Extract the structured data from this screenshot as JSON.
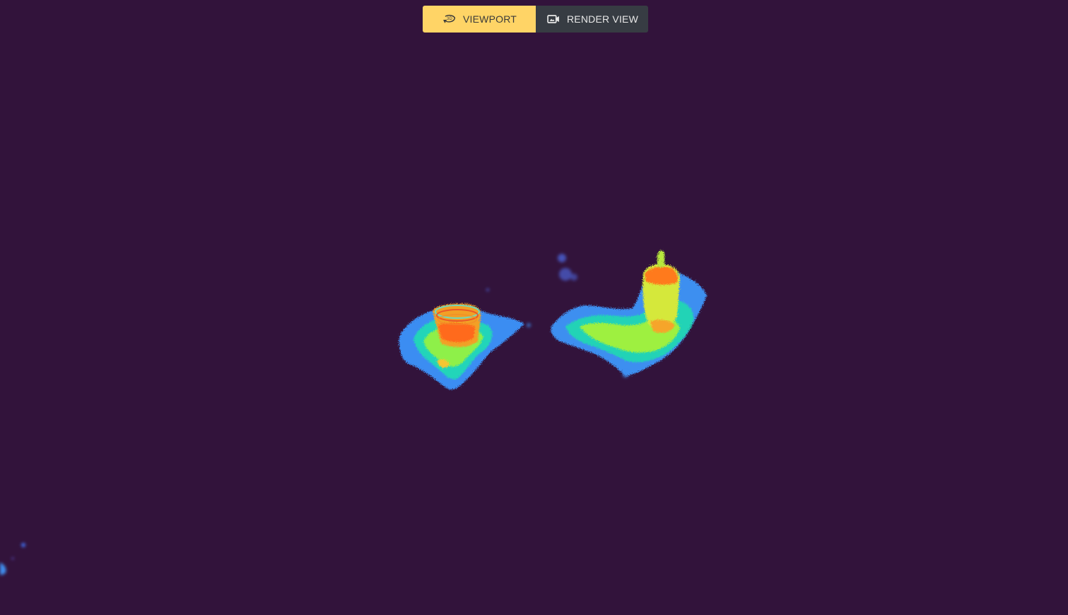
{
  "app": {
    "background_color": "#32133b"
  },
  "toolbar": {
    "viewport_label": "VIEWPORT",
    "viewport_icon": "3d-rotate-icon",
    "viewport_active": true,
    "render_view_label": "RENDER VIEW",
    "render_view_icon": "video-camera-icon",
    "active_color": "#ffd466",
    "inactive_color": "#373c43"
  },
  "scene": {
    "colormap": "turbo",
    "objects": [
      "point-cloud-object-left",
      "point-cloud-object-right",
      "point-cloud-fragment-corner"
    ]
  }
}
